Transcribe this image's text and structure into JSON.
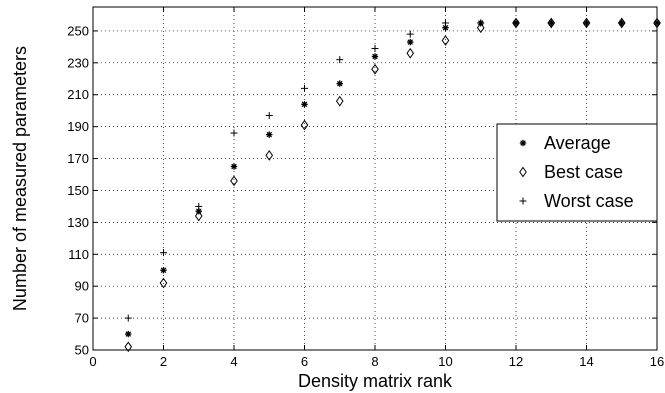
{
  "chart_data": {
    "type": "scatter",
    "xlabel": "Density matrix rank",
    "ylabel": "Number of measured parameters",
    "xlim": [
      0,
      16
    ],
    "ylim": [
      50,
      265
    ],
    "xticks": [
      0,
      2,
      4,
      6,
      8,
      10,
      12,
      14,
      16
    ],
    "yticks": [
      50,
      70,
      90,
      110,
      130,
      150,
      170,
      190,
      210,
      230,
      250
    ],
    "grid": true,
    "legend_position": "right",
    "series": [
      {
        "name": "Average",
        "marker": "asterisk",
        "x": [
          1,
          2,
          3,
          4,
          5,
          6,
          7,
          8,
          9,
          10,
          11,
          12,
          13,
          14,
          15,
          16
        ],
        "y": [
          60,
          100,
          137,
          165,
          185,
          204,
          217,
          234,
          243,
          252,
          255,
          255,
          255,
          255,
          255,
          255
        ]
      },
      {
        "name": "Best case",
        "marker": "diamond",
        "x": [
          1,
          2,
          3,
          4,
          5,
          6,
          7,
          8,
          9,
          10,
          11,
          12,
          13,
          14,
          15,
          16
        ],
        "y": [
          52,
          92,
          134,
          156,
          172,
          191,
          206,
          226,
          236,
          244,
          252,
          255,
          255,
          255,
          255,
          255
        ]
      },
      {
        "name": "Worst case",
        "marker": "plus",
        "x": [
          1,
          2,
          3,
          4,
          5,
          6,
          7,
          8,
          9,
          10,
          11,
          12,
          13,
          14,
          15,
          16
        ],
        "y": [
          70,
          111,
          140,
          186,
          197,
          214,
          232,
          239,
          248,
          255,
          255,
          255,
          255,
          255,
          255,
          255
        ]
      }
    ]
  }
}
